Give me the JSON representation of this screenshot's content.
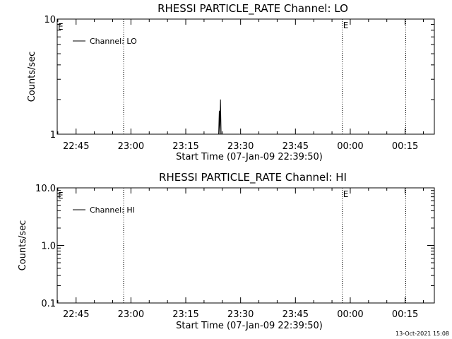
{
  "chart_data": [
    {
      "type": "line",
      "title": "RHESSI PARTICLE_RATE Channel: LO",
      "xlabel": "Start Time (07-Jan-09 22:39:50)",
      "ylabel": "Counts/sec",
      "yscale": "log",
      "ylim": [
        1,
        10
      ],
      "yticks": [
        1,
        10
      ],
      "ytick_labels": [
        "1",
        "10"
      ],
      "xlim": [
        "22:39:50",
        "00:23:00"
      ],
      "xticks": [
        "22:45",
        "23:00",
        "23:15",
        "23:30",
        "23:45",
        "00:00",
        "00:15"
      ],
      "legend": {
        "label": "Channel: LO",
        "placement": "top-left"
      },
      "event_lines": [
        {
          "x": "22:58:00",
          "label": ""
        },
        {
          "x": "23:57:50",
          "label": "E"
        },
        {
          "x": "00:15:10",
          "label": ""
        }
      ],
      "left_marker": "E",
      "series": [
        {
          "name": "Channel: LO",
          "x": [
            "23:24:00",
            "23:24:10",
            "23:24:20",
            "23:24:30",
            "23:24:40",
            "23:24:50"
          ],
          "y": [
            1,
            1.6,
            1,
            2.0,
            1,
            1
          ]
        }
      ]
    },
    {
      "type": "line",
      "title": "RHESSI PARTICLE_RATE Channel: HI",
      "xlabel": "Start Time (07-Jan-09 22:39:50)",
      "ylabel": "Counts/sec",
      "yscale": "log",
      "ylim": [
        0.1,
        10
      ],
      "yticks": [
        0.1,
        1,
        10
      ],
      "ytick_labels": [
        "0.1",
        "1.0",
        "10.0"
      ],
      "xlim": [
        "22:39:50",
        "00:23:00"
      ],
      "xticks": [
        "22:45",
        "23:00",
        "23:15",
        "23:30",
        "23:45",
        "00:00",
        "00:15"
      ],
      "legend": {
        "label": "Channel: HI",
        "placement": "top-left"
      },
      "event_lines": [
        {
          "x": "22:58:00",
          "label": ""
        },
        {
          "x": "23:57:50",
          "label": "E"
        },
        {
          "x": "00:15:10",
          "label": ""
        }
      ],
      "left_marker": "E",
      "series": [
        {
          "name": "Channel: HI",
          "x": [],
          "y": []
        }
      ]
    }
  ],
  "timestamp": "13-Oct-2021 15:08"
}
